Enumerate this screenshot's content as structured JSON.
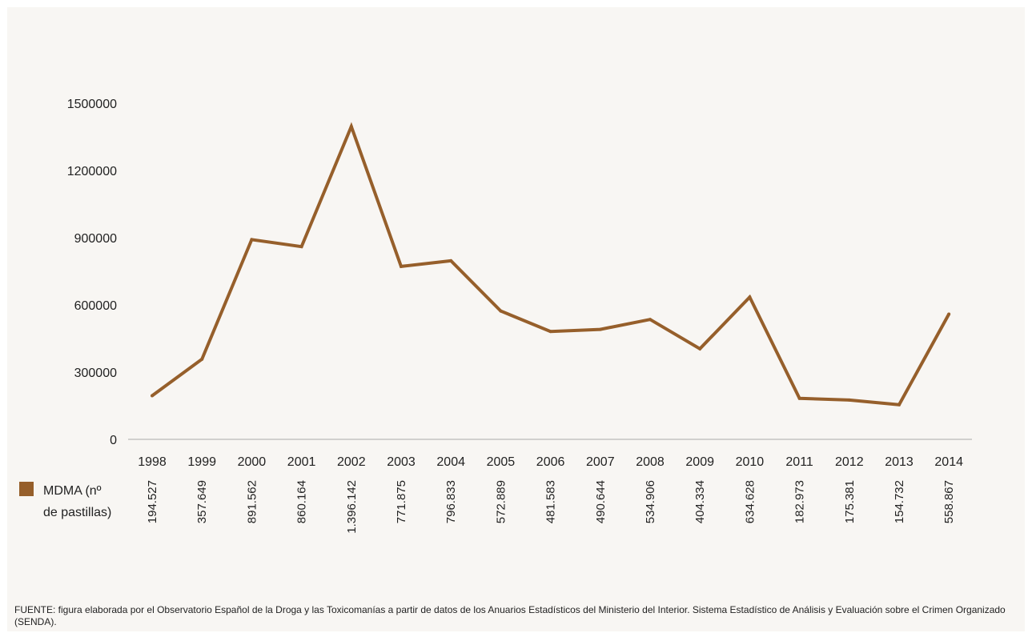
{
  "chart_data": {
    "type": "line",
    "x": [
      "1998",
      "1999",
      "2000",
      "2001",
      "2002",
      "2003",
      "2004",
      "2005",
      "2006",
      "2007",
      "2008",
      "2009",
      "2010",
      "2011",
      "2012",
      "2013",
      "2014"
    ],
    "series": [
      {
        "name": "MDMA (nº de pastillas)",
        "values": [
          194527,
          357649,
          891562,
          860164,
          1396142,
          771875,
          796833,
          572889,
          481583,
          490644,
          534906,
          404334,
          634628,
          182973,
          175381,
          154732,
          558867
        ],
        "value_labels": [
          "194.527",
          "357.649",
          "891.562",
          "860.164",
          "1.396.142",
          "771.875",
          "796.833",
          "572.889",
          "481.583",
          "490.644",
          "534.906",
          "404.334",
          "634.628",
          "182.973",
          "175.381",
          "154.732",
          "558.867"
        ],
        "color": "#965f2b"
      }
    ],
    "ylim": [
      0,
      1500000
    ],
    "yticks": [
      0,
      300000,
      600000,
      900000,
      1200000,
      1500000
    ],
    "ytick_labels": [
      "0",
      "300000",
      "600000",
      "900000",
      "1200000",
      "1500000"
    ],
    "grid": false,
    "legend": {
      "placement": "bottom-left",
      "line1": "MDMA (nº",
      "line2": "de pastillas)"
    },
    "axis_color": "#aaaaaa"
  },
  "source_text": "FUENTE: figura elaborada por el Observatorio Español de la Droga y las Toxicomanías a partir de datos de los Anuarios Estadísticos del Ministerio del Interior. Sistema Estadístico de Análisis y Evaluación sobre el Crimen Organizado (SENDA)."
}
